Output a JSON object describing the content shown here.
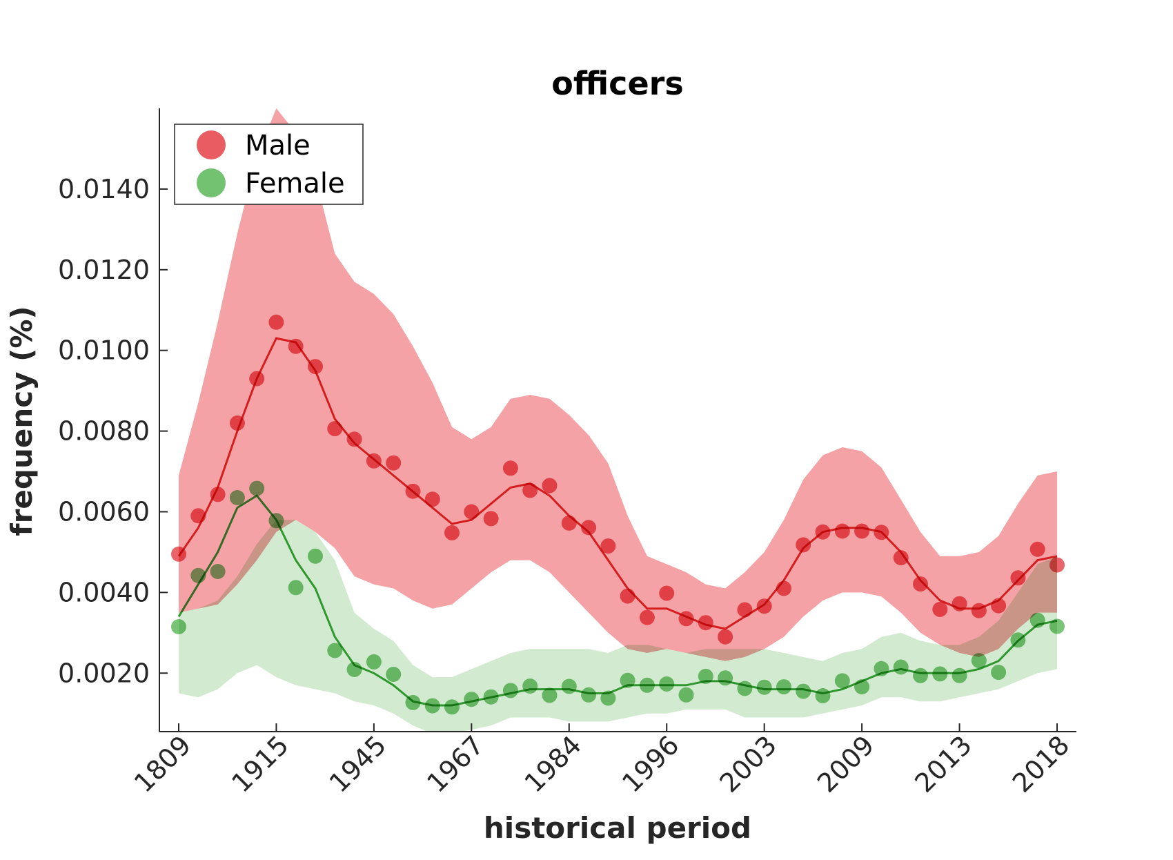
{
  "chart_data": {
    "type": "scatter",
    "title": "officers",
    "xlabel": "historical period",
    "ylabel": "frequency (%)",
    "x_tick_labels": [
      "1809",
      "1915",
      "1945",
      "1967",
      "1984",
      "1996",
      "2003",
      "2009",
      "2013",
      "2018"
    ],
    "y_ticks": [
      0.002,
      0.004,
      0.006,
      0.008,
      0.01,
      0.012,
      0.014
    ],
    "y_tick_labels": [
      "0.0020",
      "0.0040",
      "0.0060",
      "0.0080",
      "0.0100",
      "0.0120",
      "0.0140"
    ],
    "ylim": [
      0.00055,
      0.016
    ],
    "grid": false,
    "legend_position": "top-left",
    "series": [
      {
        "name": "Male",
        "color": "#e8545a",
        "line_color": "#dd2222",
        "band_color": "#f4a2a5",
        "points": [
          0.00495,
          0.0059,
          0.00643,
          0.0082,
          0.0093,
          0.0107,
          0.0101,
          0.0096,
          0.00806,
          0.0078,
          0.00726,
          0.00721,
          0.00651,
          0.00631,
          0.00548,
          0.006,
          0.00583,
          0.00708,
          0.00653,
          0.00665,
          0.00572,
          0.00561,
          0.00515,
          0.00391,
          0.00338,
          0.00398,
          0.00335,
          0.00325,
          0.0029,
          0.00357,
          0.00366,
          0.0041,
          0.00518,
          0.0055,
          0.00552,
          0.00552,
          0.00549,
          0.00486,
          0.00421,
          0.00358,
          0.00372,
          0.00355,
          0.00367,
          0.00436,
          0.00507,
          0.00468
        ],
        "trend": [
          0.0049,
          0.0056,
          0.0066,
          0.008,
          0.0093,
          0.0103,
          0.0102,
          0.0095,
          0.0083,
          0.0077,
          0.0073,
          0.0069,
          0.0065,
          0.0061,
          0.0057,
          0.0058,
          0.0062,
          0.0066,
          0.0067,
          0.0064,
          0.0059,
          0.0055,
          0.0048,
          0.0041,
          0.0036,
          0.0036,
          0.0034,
          0.0032,
          0.0031,
          0.0034,
          0.0037,
          0.0043,
          0.0051,
          0.0055,
          0.0056,
          0.0056,
          0.0055,
          0.005,
          0.0043,
          0.0038,
          0.0036,
          0.0036,
          0.0038,
          0.0043,
          0.0048,
          0.0049
        ],
        "band_upper": [
          0.0069,
          0.0087,
          0.0107,
          0.0129,
          0.0148,
          0.016,
          0.0154,
          0.0143,
          0.0124,
          0.0117,
          0.0114,
          0.0109,
          0.0101,
          0.0092,
          0.0081,
          0.0078,
          0.0081,
          0.0088,
          0.0089,
          0.0088,
          0.0084,
          0.0079,
          0.0072,
          0.0059,
          0.0049,
          0.0047,
          0.0045,
          0.0042,
          0.0041,
          0.0045,
          0.005,
          0.0058,
          0.0068,
          0.0074,
          0.0076,
          0.0075,
          0.0071,
          0.0063,
          0.0055,
          0.0049,
          0.0049,
          0.005,
          0.0054,
          0.0062,
          0.0069,
          0.007
        ],
        "band_lower": [
          0.0035,
          0.0036,
          0.0037,
          0.0042,
          0.0048,
          0.0055,
          0.0058,
          0.0055,
          0.0051,
          0.0044,
          0.0042,
          0.0041,
          0.0038,
          0.0036,
          0.0037,
          0.0041,
          0.0045,
          0.0048,
          0.0048,
          0.0045,
          0.004,
          0.0035,
          0.003,
          0.0026,
          0.0025,
          0.0026,
          0.0025,
          0.0024,
          0.0023,
          0.0024,
          0.0026,
          0.0029,
          0.0034,
          0.0038,
          0.004,
          0.004,
          0.0039,
          0.0035,
          0.003,
          0.0027,
          0.0025,
          0.0024,
          0.0026,
          0.0031,
          0.0035,
          0.0035
        ]
      },
      {
        "name": "Female",
        "color": "#6abf69",
        "line_color": "#2ca02c",
        "band_color": "#add9a8",
        "points": [
          0.00315,
          0.00442,
          0.00452,
          0.00635,
          0.00658,
          0.00578,
          0.00412,
          0.0049,
          0.00256,
          0.00209,
          0.00228,
          0.00197,
          0.00127,
          0.00119,
          0.00116,
          0.00135,
          0.00141,
          0.00157,
          0.00168,
          0.00145,
          0.00167,
          0.00146,
          0.00138,
          0.00182,
          0.0017,
          0.00173,
          0.00146,
          0.00192,
          0.00188,
          0.00162,
          0.00165,
          0.00166,
          0.00155,
          0.00144,
          0.00181,
          0.00166,
          0.00211,
          0.00215,
          0.00194,
          0.00198,
          0.00194,
          0.00231,
          0.00202,
          0.00282,
          0.00331,
          0.00316
        ],
        "trend": [
          0.0034,
          0.0042,
          0.005,
          0.0061,
          0.0064,
          0.0058,
          0.0048,
          0.0041,
          0.0029,
          0.0022,
          0.002,
          0.0017,
          0.0013,
          0.0012,
          0.0012,
          0.0013,
          0.0014,
          0.0015,
          0.0016,
          0.0016,
          0.0016,
          0.0015,
          0.0015,
          0.0017,
          0.0017,
          0.0017,
          0.0017,
          0.0018,
          0.0018,
          0.0017,
          0.0016,
          0.0016,
          0.0016,
          0.0015,
          0.0016,
          0.0018,
          0.002,
          0.0021,
          0.002,
          0.002,
          0.002,
          0.0021,
          0.0023,
          0.0028,
          0.0032,
          0.0033
        ],
        "band_upper": [
          0.0035,
          0.0036,
          0.0038,
          0.0044,
          0.0052,
          0.0058,
          0.0058,
          0.0055,
          0.0048,
          0.0035,
          0.0031,
          0.0028,
          0.0022,
          0.0019,
          0.0019,
          0.0021,
          0.0023,
          0.0025,
          0.0026,
          0.0026,
          0.0026,
          0.0026,
          0.0025,
          0.0027,
          0.0027,
          0.0026,
          0.0025,
          0.0026,
          0.0026,
          0.0026,
          0.0026,
          0.0025,
          0.0024,
          0.0023,
          0.0025,
          0.0026,
          0.0029,
          0.003,
          0.0028,
          0.0027,
          0.0027,
          0.0029,
          0.0033,
          0.004,
          0.0047,
          0.0049
        ],
        "band_lower": [
          0.0015,
          0.0014,
          0.0016,
          0.002,
          0.0022,
          0.0019,
          0.0017,
          0.0016,
          0.0015,
          0.0013,
          0.0012,
          0.001,
          0.0007,
          0.0005,
          0.0005,
          0.0006,
          0.0007,
          0.0009,
          0.0009,
          0.0009,
          0.0008,
          0.0008,
          0.0008,
          0.0009,
          0.001,
          0.001,
          0.0011,
          0.0011,
          0.0011,
          0.0009,
          0.0009,
          0.0009,
          0.0009,
          0.001,
          0.0011,
          0.0012,
          0.0014,
          0.0014,
          0.0013,
          0.0013,
          0.0014,
          0.0015,
          0.0016,
          0.0018,
          0.002,
          0.0021
        ]
      }
    ]
  }
}
